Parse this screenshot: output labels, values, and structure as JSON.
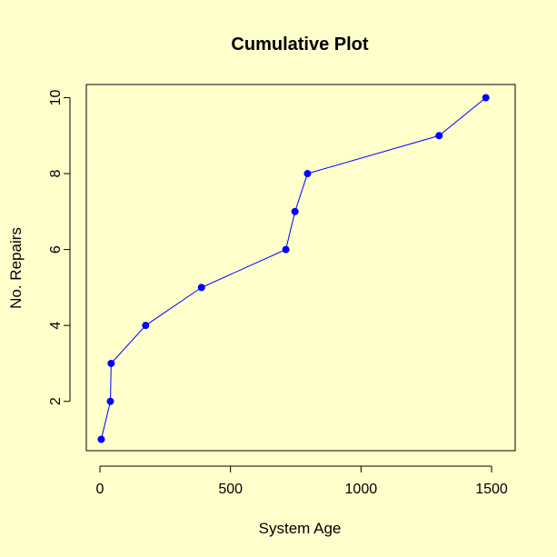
{
  "chart_data": {
    "type": "line",
    "title": "Cumulative Plot",
    "xlabel": "System Age",
    "ylabel": "No. Repairs",
    "xlim": [
      0,
      1500
    ],
    "ylim": [
      1,
      10
    ],
    "xticks": [
      0,
      500,
      1000,
      1500
    ],
    "yticks": [
      2,
      4,
      6,
      8,
      10
    ],
    "grid": false,
    "legend": false,
    "series": [
      {
        "color": "#0000ff",
        "marker": "filled-circle",
        "x": [
          5,
          40,
          43,
          175,
          389,
          712,
          747,
          795,
          1299,
          1478
        ],
        "y": [
          1,
          2,
          3,
          4,
          5,
          6,
          7,
          8,
          9,
          10
        ]
      }
    ]
  }
}
